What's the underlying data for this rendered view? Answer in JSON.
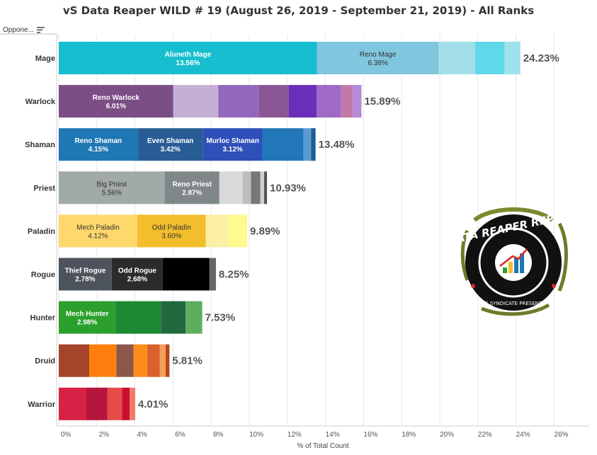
{
  "title": "vS Data Reaper WILD # 19 (August 26, 2019 - September 21, 2019) - All Ranks",
  "filter": {
    "label": "Oppone...",
    "icon": "sort-icon"
  },
  "logo": {
    "icon": "data-reaper-report-logo",
    "text_top": "DATA REAPER REPORT",
    "text_bottom": "VS SYNDICATE PRESENTS"
  },
  "chart_data": {
    "type": "bar",
    "orientation": "horizontal",
    "stacked": true,
    "xlabel": "% of Total Count",
    "ylabel": "",
    "xlim": [
      0,
      27
    ],
    "xticks": [
      "0%",
      "2%",
      "4%",
      "6%",
      "8%",
      "10%",
      "12%",
      "14%",
      "16%",
      "18%",
      "20%",
      "22%",
      "24%",
      "26%"
    ],
    "grid": "vertical",
    "categories": [
      "Mage",
      "Warlock",
      "Shaman",
      "Priest",
      "Paladin",
      "Rogue",
      "Hunter",
      "Druid",
      "Warrior"
    ],
    "totals": [
      24.23,
      15.89,
      13.48,
      10.93,
      9.89,
      8.25,
      7.53,
      5.81,
      4.01
    ],
    "total_labels": [
      "24.23%",
      "15.89%",
      "13.48%",
      "10.93%",
      "9.89%",
      "8.25%",
      "7.53%",
      "5.81%",
      "4.01%"
    ],
    "segments": [
      [
        {
          "name": "Aluneth Mage",
          "label": "13.56%",
          "value": 13.56,
          "color": "#17becf"
        },
        {
          "name": "Reno Mage",
          "label": "6.38%",
          "value": 6.38,
          "color": "#7fc6de"
        },
        {
          "name": "",
          "label": "",
          "value": 1.92,
          "color": "#a3dfe8"
        },
        {
          "name": "",
          "label": "",
          "value": 1.55,
          "color": "#5fd9ea"
        },
        {
          "name": "",
          "label": "",
          "value": 0.82,
          "color": "#9fe2ee"
        }
      ],
      [
        {
          "name": "Reno Warlock",
          "label": "6.01%",
          "value": 6.01,
          "color": "#7b4e86"
        },
        {
          "name": "",
          "label": "",
          "value": 2.36,
          "color": "#c5b0d5"
        },
        {
          "name": "",
          "label": "",
          "value": 2.12,
          "color": "#9467bd"
        },
        {
          "name": "",
          "label": "",
          "value": 1.58,
          "color": "#8a5694"
        },
        {
          "name": "",
          "label": "",
          "value": 1.47,
          "color": "#6a2fb8"
        },
        {
          "name": "",
          "label": "",
          "value": 1.28,
          "color": "#9e6ac6"
        },
        {
          "name": "",
          "label": "",
          "value": 0.6,
          "color": "#c07aa8"
        },
        {
          "name": "",
          "label": "",
          "value": 0.47,
          "color": "#b58ad6"
        }
      ],
      [
        {
          "name": "Reno Shaman",
          "label": "4.15%",
          "value": 4.15,
          "color": "#1f77b4"
        },
        {
          "name": "Even Shaman",
          "label": "3.42%",
          "value": 3.42,
          "color": "#295d96"
        },
        {
          "name": "Murloc Shaman",
          "label": "3.12%",
          "value": 3.12,
          "color": "#2f4fb9"
        },
        {
          "name": "",
          "label": "",
          "value": 2.16,
          "color": "#2277b8"
        },
        {
          "name": "",
          "label": "",
          "value": 0.39,
          "color": "#5c9bd1"
        },
        {
          "name": "",
          "label": "",
          "value": 0.24,
          "color": "#1a5f99"
        }
      ],
      [
        {
          "name": "Big Priest",
          "label": "5.56%",
          "value": 5.56,
          "color": "#a1a9a9"
        },
        {
          "name": "Reno Priest",
          "label": "2.87%",
          "value": 2.87,
          "color": "#7f8789"
        },
        {
          "name": "",
          "label": "",
          "value": 1.22,
          "color": "#d9d9d9"
        },
        {
          "name": "",
          "label": "",
          "value": 0.44,
          "color": "#bdbdbd"
        },
        {
          "name": "",
          "label": "",
          "value": 0.49,
          "color": "#777777"
        },
        {
          "name": "",
          "label": "",
          "value": 0.2,
          "color": "#cfcfcf"
        },
        {
          "name": "",
          "label": "",
          "value": 0.15,
          "color": "#555555"
        }
      ],
      [
        {
          "name": "Mech Paladin",
          "label": "4.12%",
          "value": 4.12,
          "color": "#fed86b"
        },
        {
          "name": "Odd Paladin",
          "label": "3.60%",
          "value": 3.6,
          "color": "#f2be2c"
        },
        {
          "name": "",
          "label": "",
          "value": 1.17,
          "color": "#fbefa6"
        },
        {
          "name": "",
          "label": "",
          "value": 1.0,
          "color": "#fdfa8e"
        }
      ],
      [
        {
          "name": "Thief Rogue",
          "label": "2.78%",
          "value": 2.78,
          "color": "#4d535a"
        },
        {
          "name": "Odd Rogue",
          "label": "2.68%",
          "value": 2.68,
          "color": "#2b2b2b"
        },
        {
          "name": "",
          "label": "",
          "value": 2.44,
          "color": "#000000"
        },
        {
          "name": "",
          "label": "",
          "value": 0.35,
          "color": "#666666"
        }
      ],
      [
        {
          "name": "Mech Hunter",
          "label": "2.98%",
          "value": 2.98,
          "color": "#2ca02c"
        },
        {
          "name": "",
          "label": "",
          "value": 2.38,
          "color": "#1b8a32"
        },
        {
          "name": "",
          "label": "",
          "value": 1.3,
          "color": "#216a3f"
        },
        {
          "name": "",
          "label": "",
          "value": 0.87,
          "color": "#5eae5e"
        }
      ],
      [
        {
          "name": "",
          "label": "",
          "value": 1.6,
          "color": "#a5442a"
        },
        {
          "name": "",
          "label": "",
          "value": 1.42,
          "color": "#ff7f0e"
        },
        {
          "name": "",
          "label": "",
          "value": 0.9,
          "color": "#8c564b"
        },
        {
          "name": "",
          "label": "",
          "value": 0.73,
          "color": "#fd8d1a"
        },
        {
          "name": "",
          "label": "",
          "value": 0.65,
          "color": "#d9622b"
        },
        {
          "name": "",
          "label": "",
          "value": 0.31,
          "color": "#f5a05a"
        },
        {
          "name": "",
          "label": "",
          "value": 0.2,
          "color": "#b5471b"
        }
      ],
      [
        {
          "name": "",
          "label": "",
          "value": 1.45,
          "color": "#d62245"
        },
        {
          "name": "",
          "label": "",
          "value": 1.1,
          "color": "#b5163e"
        },
        {
          "name": "",
          "label": "",
          "value": 0.77,
          "color": "#e84a4a"
        },
        {
          "name": "",
          "label": "",
          "value": 0.4,
          "color": "#c8102e"
        },
        {
          "name": "",
          "label": "",
          "value": 0.29,
          "color": "#f07a6a"
        }
      ]
    ]
  }
}
